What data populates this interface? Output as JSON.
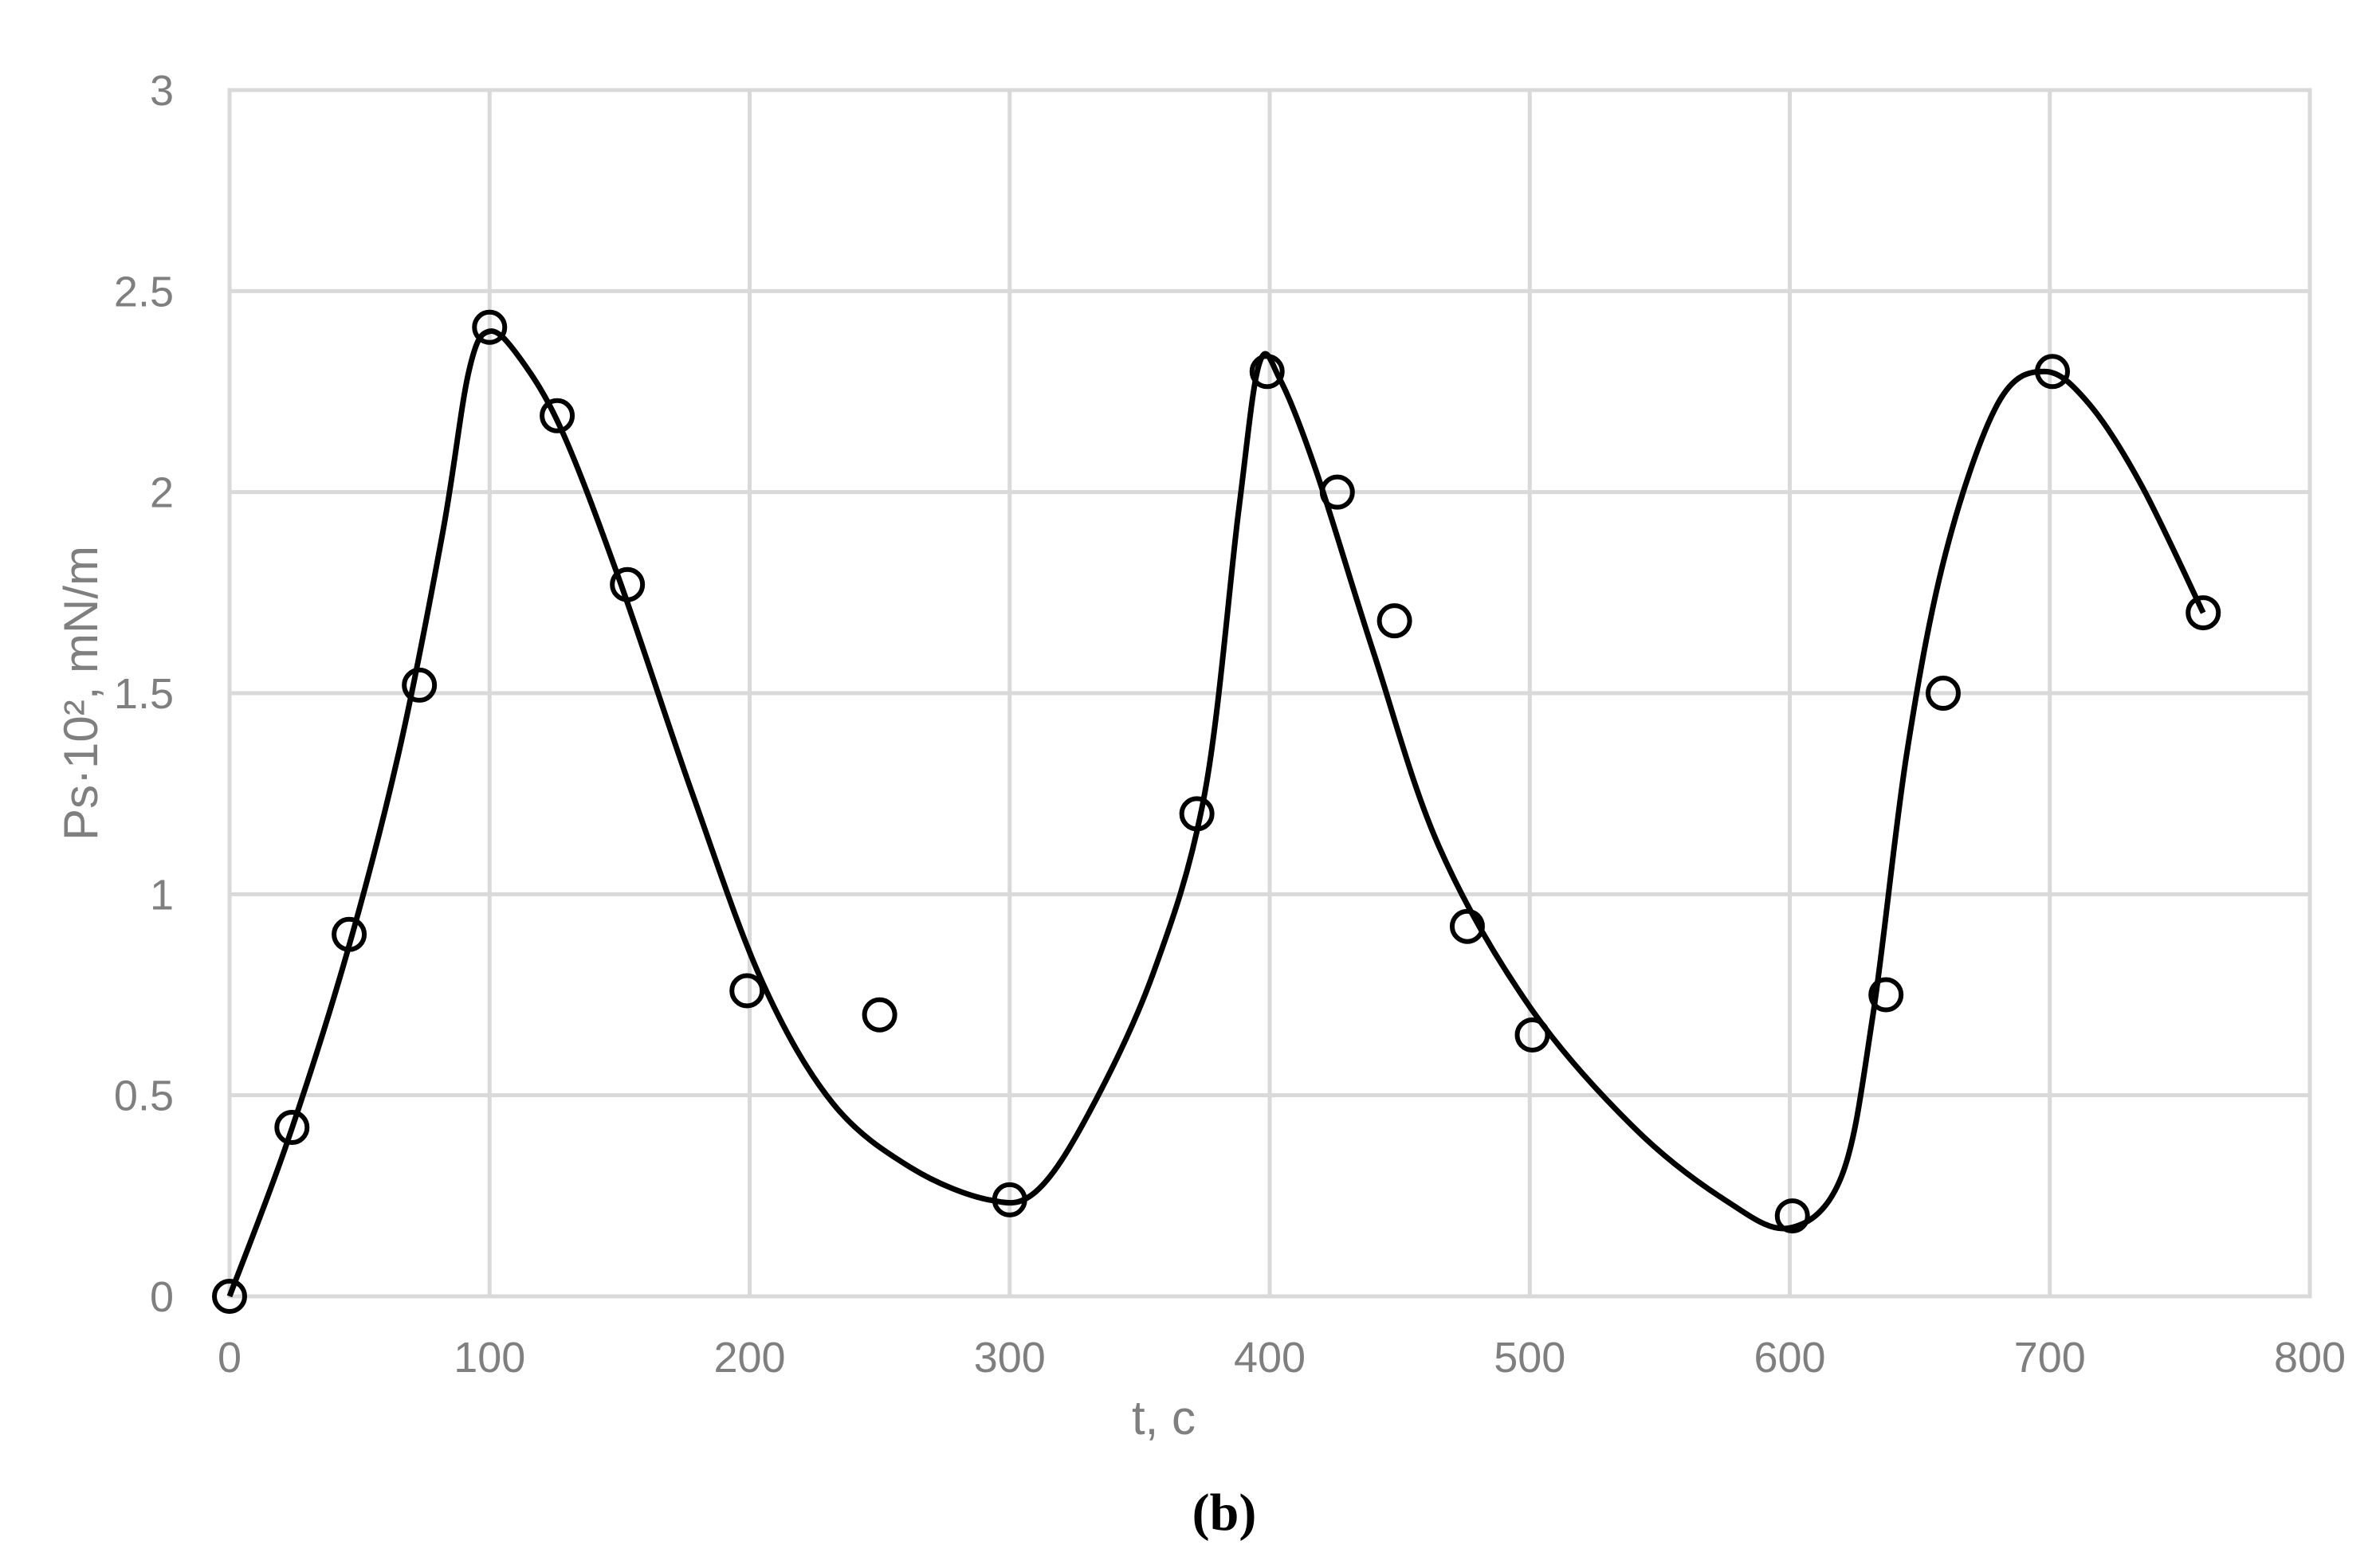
{
  "chart_data": {
    "type": "scatter",
    "xlabel": "t, c",
    "ylabel": "Ps·10², mN/m",
    "caption": "(b)",
    "xlim": [
      0,
      800
    ],
    "ylim": [
      0,
      3
    ],
    "x_ticks": [
      "0",
      "100",
      "200",
      "300",
      "400",
      "500",
      "600",
      "700",
      "800"
    ],
    "y_ticks": [
      "0",
      "0.5",
      "1",
      "1.5",
      "2",
      "2.5",
      "3"
    ],
    "grid": true,
    "legend": "none",
    "colors": {
      "marker": "#000000",
      "line": "#000000",
      "grid": "#d9d9d9",
      "tick_text": "#7f7f7f"
    },
    "series": [
      {
        "kind": "markers",
        "marker": "open-circle",
        "x": [
          0,
          24,
          46,
          73,
          100,
          126,
          153,
          199,
          250,
          300,
          372,
          399,
          426,
          448,
          476,
          501,
          601,
          637,
          659,
          701,
          759
        ],
        "y": [
          0,
          0.42,
          0.9,
          1.52,
          2.41,
          2.19,
          1.77,
          0.76,
          0.7,
          0.24,
          1.2,
          2.3,
          2.0,
          1.68,
          0.92,
          0.65,
          0.2,
          0.75,
          1.5,
          2.3,
          1.7
        ]
      },
      {
        "kind": "smooth-line",
        "x": [
          0,
          22,
          45,
          65,
          82,
          92,
          100,
          112,
          128,
          150,
          178,
          205,
          232,
          262,
          292,
          310,
          330,
          355,
          375,
          388,
          396,
          404,
          418,
          440,
          465,
          500,
          540,
          575,
          600,
          620,
          632,
          645,
          660,
          680,
          698,
          715,
          735,
          759
        ],
        "y": [
          0,
          0.38,
          0.85,
          1.35,
          1.9,
          2.3,
          2.4,
          2.33,
          2.15,
          1.78,
          1.25,
          0.78,
          0.48,
          0.32,
          0.24,
          0.26,
          0.45,
          0.8,
          1.25,
          1.95,
          2.32,
          2.28,
          2.05,
          1.6,
          1.12,
          0.72,
          0.42,
          0.24,
          0.17,
          0.3,
          0.7,
          1.35,
          1.85,
          2.22,
          2.3,
          2.22,
          2.02,
          1.7
        ]
      }
    ]
  }
}
